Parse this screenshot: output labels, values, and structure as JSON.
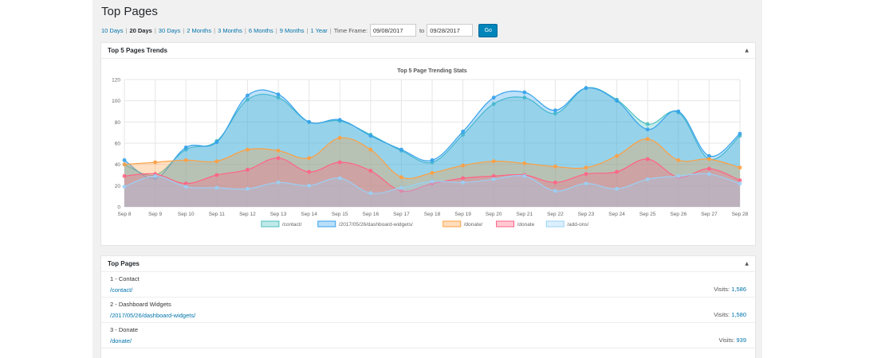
{
  "page": {
    "title": "Top Pages"
  },
  "range": {
    "links": [
      "10 Days",
      "20 Days",
      "30 Days",
      "2 Months",
      "3 Months",
      "6 Months",
      "9 Months",
      "1 Year"
    ],
    "active": "20 Days",
    "timeframe_label": "Time Frame:",
    "from_value": "09/08/2017",
    "to_label": "to",
    "to_value": "09/28/2017",
    "go_label": "Go"
  },
  "trends_panel": {
    "title": "Top 5 Pages Trends",
    "toggle": "▲"
  },
  "top_pages_panel": {
    "title": "Top Pages",
    "toggle": "▲",
    "visits_label": "Visits:",
    "rows": [
      {
        "name": "1 - Contact",
        "path": "/contact/",
        "visits": "1,586"
      },
      {
        "name": "2 - Dashboard Widgets",
        "path": "/2017/05/26/dashboard-widgets/",
        "visits": "1,580"
      },
      {
        "name": "3 - Donate",
        "path": "/donate/",
        "visits": "939"
      }
    ]
  },
  "chart_data": {
    "type": "area",
    "title": "Top 5 Page Trending Stats",
    "categories": [
      "Sep 8",
      "Sep 9",
      "Sep 10",
      "Sep 11",
      "Sep 12",
      "Sep 13",
      "Sep 14",
      "Sep 15",
      "Sep 16",
      "Sep 17",
      "Sep 18",
      "Sep 19",
      "Sep 20",
      "Sep 21",
      "Sep 22",
      "Sep 23",
      "Sep 24",
      "Sep 25",
      "Sep 26",
      "Sep 27",
      "Sep 28"
    ],
    "yticks": [
      0,
      20,
      40,
      60,
      80,
      100,
      120
    ],
    "ylim": [
      0,
      120
    ],
    "legend_position": "bottom",
    "grid": true,
    "series": [
      {
        "name": "/contact/",
        "color": "#4bc0c0",
        "values": [
          40,
          30,
          54,
          62,
          101,
          103,
          80,
          81,
          68,
          53,
          42,
          68,
          97,
          103,
          88,
          112,
          101,
          78,
          89,
          45,
          67
        ]
      },
      {
        "name": "/2017/05/26/dashboard-widgets/",
        "color": "#36a2eb",
        "values": [
          44,
          27,
          56,
          61,
          105,
          106,
          80,
          82,
          67,
          54,
          44,
          71,
          103,
          108,
          91,
          112,
          100,
          73,
          90,
          48,
          69
        ]
      },
      {
        "name": "/donate/",
        "color": "#ff9f40",
        "values": [
          40,
          42,
          44,
          43,
          54,
          53,
          46,
          65,
          54,
          28,
          32,
          39,
          43,
          41,
          38,
          37,
          48,
          64,
          44,
          45,
          37
        ]
      },
      {
        "name": "/donate",
        "color": "#ff6384",
        "values": [
          29,
          31,
          22,
          30,
          35,
          46,
          33,
          42,
          34,
          15,
          22,
          27,
          29,
          30,
          23,
          31,
          33,
          45,
          28,
          36,
          25
        ]
      },
      {
        "name": "/add-ons/",
        "color": "#9ad0f5",
        "values": [
          19,
          29,
          19,
          18,
          17,
          23,
          20,
          27,
          13,
          18,
          24,
          23,
          26,
          29,
          15,
          22,
          17,
          26,
          29,
          31,
          22
        ]
      }
    ]
  }
}
